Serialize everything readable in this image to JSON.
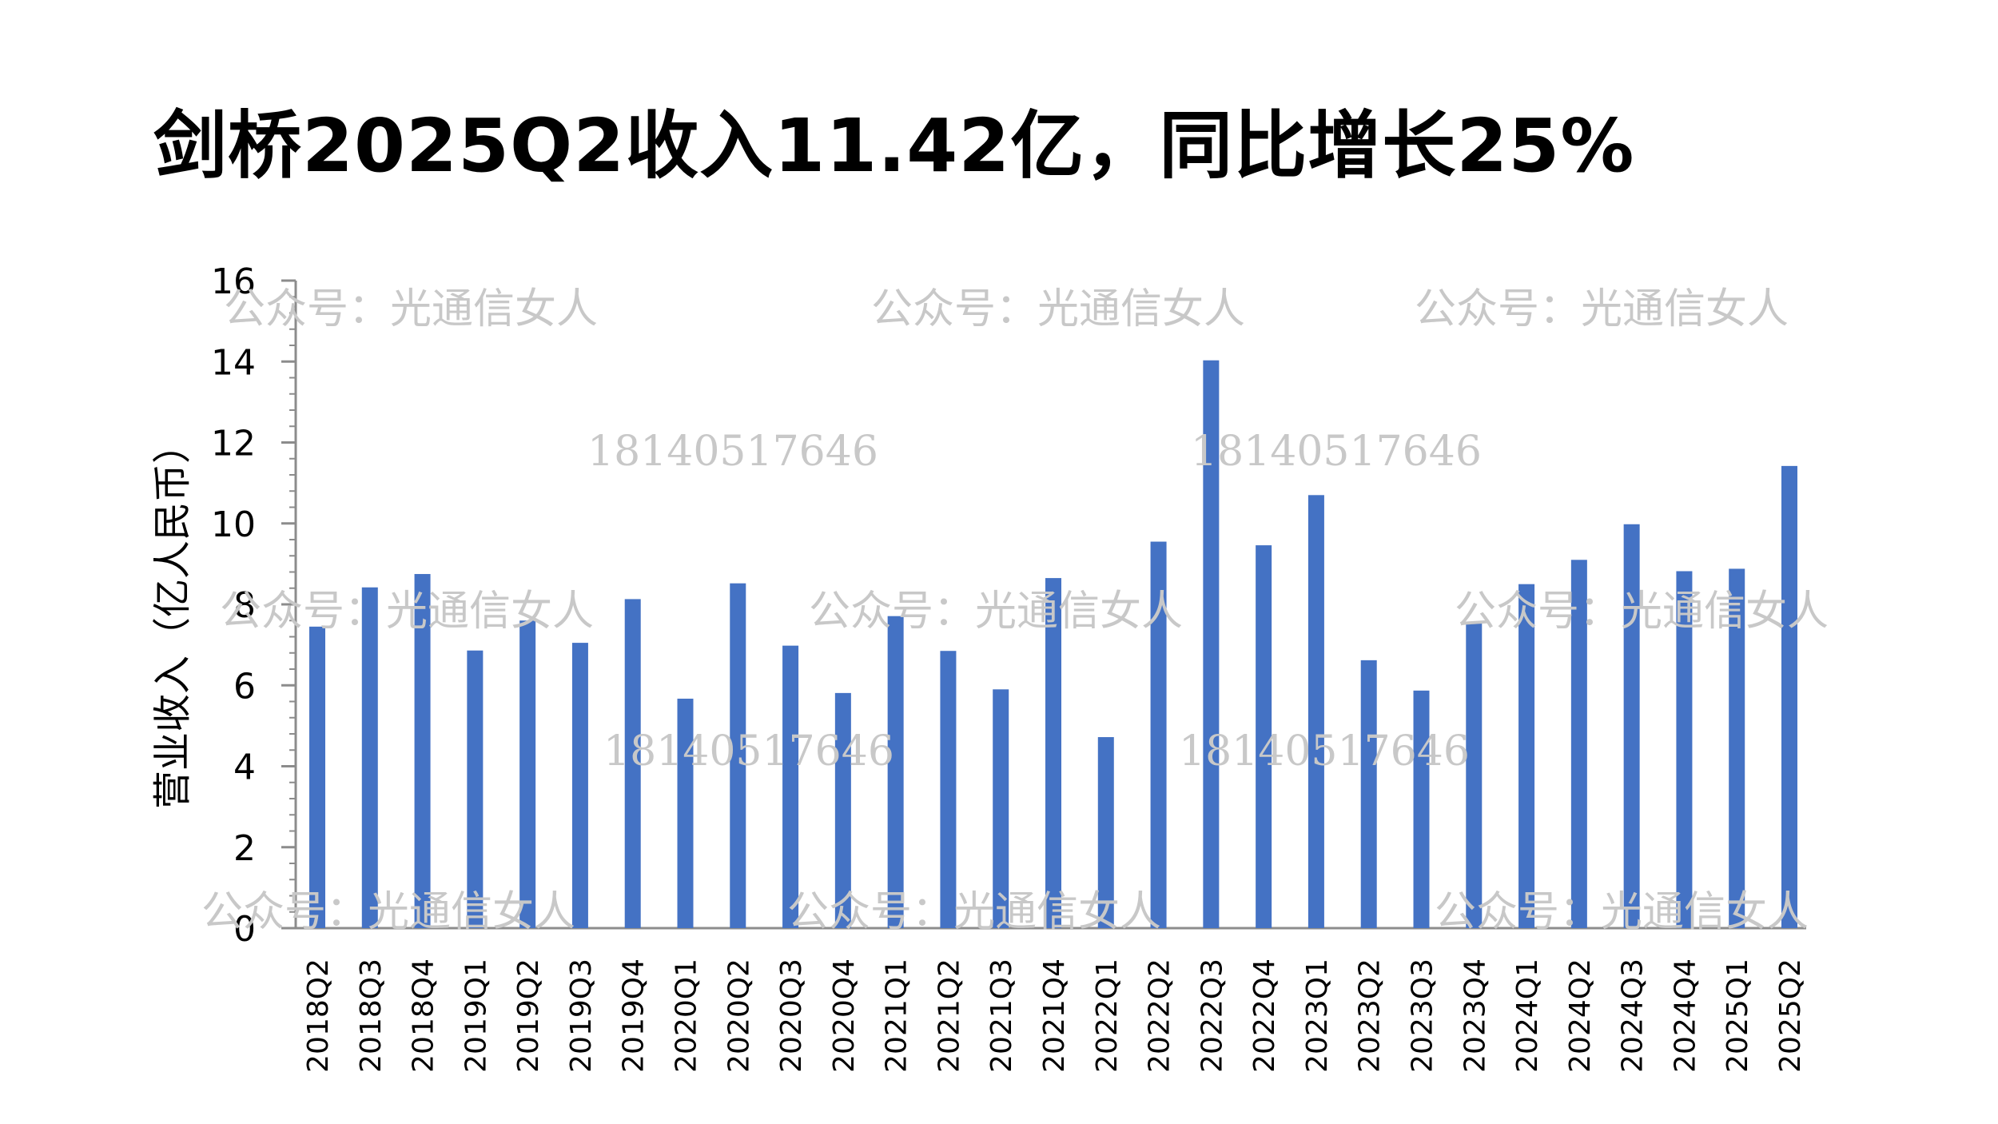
{
  "colors": {
    "bar": "#4472C4",
    "axis": "#8c8c8c",
    "text": "#000000",
    "watermark": "#c8c8c8"
  },
  "watermark": {
    "account": "公众号：光通信女人",
    "phone": "18140517646"
  },
  "chart_data": {
    "type": "bar",
    "title": "剑桥2025Q2收入11.42亿，同比增长25%",
    "xlabel": "",
    "ylabel": "营业收入（亿人民币）",
    "ylim": [
      0,
      16
    ],
    "yticks": [
      "0",
      "2",
      "4",
      "6",
      "8",
      "10",
      "12",
      "14",
      "16"
    ],
    "grid": false,
    "legend": "none",
    "categories": [
      "2018Q2",
      "2018Q3",
      "2018Q4",
      "2019Q1",
      "2019Q2",
      "2019Q3",
      "2019Q4",
      "2020Q1",
      "2020Q2",
      "2020Q3",
      "2020Q4",
      "2021Q1",
      "2021Q2",
      "2021Q3",
      "2021Q4",
      "2022Q1",
      "2022Q2",
      "2022Q3",
      "2022Q4",
      "2023Q1",
      "2023Q2",
      "2023Q3",
      "2023Q4",
      "2024Q1",
      "2024Q2",
      "2024Q3",
      "2024Q4",
      "2025Q1",
      "2025Q2"
    ],
    "values": [
      7.45,
      8.42,
      8.75,
      6.86,
      7.6,
      7.05,
      8.13,
      5.67,
      8.52,
      6.98,
      5.81,
      7.71,
      6.85,
      5.9,
      8.65,
      4.72,
      9.55,
      14.03,
      9.46,
      10.7,
      6.62,
      5.87,
      7.56,
      8.5,
      9.1,
      9.98,
      8.82,
      8.88,
      11.42
    ]
  }
}
